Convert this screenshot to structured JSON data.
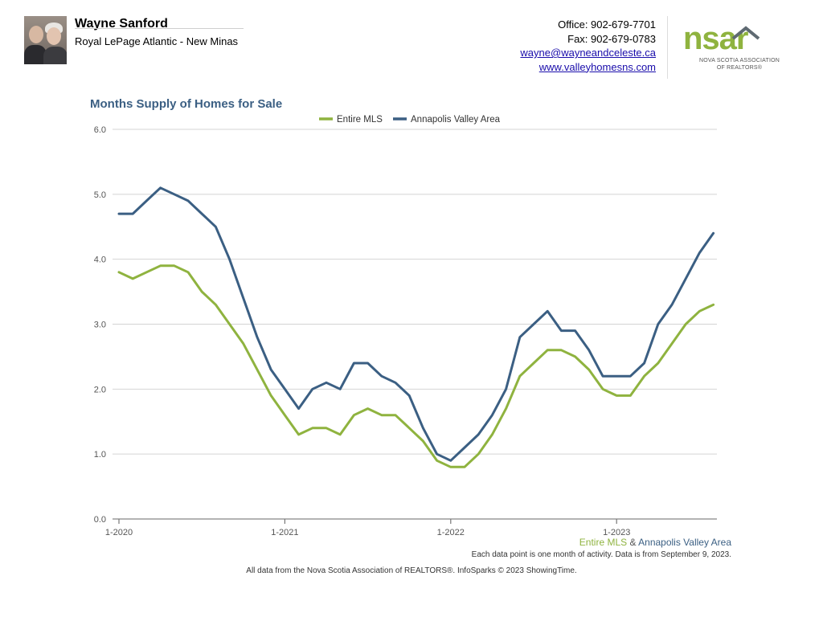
{
  "agent": {
    "name": "Wayne Sanford",
    "company": "Royal LePage Atlantic - New Minas"
  },
  "contact": {
    "office": "Office: 902-679-7701",
    "fax": "Fax: 902-679-0783",
    "email": "wayne@wayneandceleste.ca",
    "website": "www.valleyhomesns.com"
  },
  "logo": {
    "word": "nsar",
    "line1": "NOVA SCOTIA ASSOCIATION",
    "line2": "OF REALTORS®"
  },
  "colors": {
    "entire_mls": "#8fb33f",
    "annapolis": "#3b5f83",
    "grid": "#d4d4d4"
  },
  "footer": {
    "series_a": "Entire MLS",
    "amp": " & ",
    "series_b": "Annapolis Valley Area",
    "note": "Each data point is one month of activity. Data is from September 9, 2023.",
    "source": "All data from the Nova Scotia Association of REALTORS®. InfoSparks © 2023 ShowingTime."
  },
  "chart_data": {
    "type": "line",
    "title": "Months Supply of Homes for Sale",
    "xlabel": "",
    "ylabel": "",
    "ylim": [
      0,
      6
    ],
    "y_ticks": [
      "0.0",
      "1.0",
      "2.0",
      "3.0",
      "4.0",
      "5.0",
      "6.0"
    ],
    "x_tick_labels": [
      "1-2020",
      "1-2021",
      "1-2022",
      "1-2023"
    ],
    "x_tick_month_index": [
      0,
      12,
      24,
      36
    ],
    "x_range_months": [
      0,
      44
    ],
    "legend_position": "top-center",
    "grid": true,
    "series": [
      {
        "name": "Entire MLS",
        "color": "#8fb33f",
        "values": [
          3.8,
          3.7,
          3.8,
          3.9,
          3.9,
          3.8,
          3.5,
          3.3,
          3.0,
          2.7,
          2.3,
          1.9,
          1.6,
          1.3,
          1.4,
          1.4,
          1.3,
          1.6,
          1.7,
          1.6,
          1.6,
          1.4,
          1.2,
          0.9,
          0.8,
          0.8,
          1.0,
          1.3,
          1.7,
          2.2,
          2.4,
          2.6,
          2.6,
          2.5,
          2.3,
          2.0,
          1.9,
          1.9,
          2.2,
          2.4,
          2.7,
          3.0,
          3.2,
          3.3
        ]
      },
      {
        "name": "Annapolis Valley Area",
        "color": "#3b5f83",
        "values": [
          4.7,
          4.7,
          4.9,
          5.1,
          5.0,
          4.9,
          4.7,
          4.5,
          4.0,
          3.4,
          2.8,
          2.3,
          2.0,
          1.7,
          2.0,
          2.1,
          2.0,
          2.4,
          2.4,
          2.2,
          2.1,
          1.9,
          1.4,
          1.0,
          0.9,
          1.1,
          1.3,
          1.6,
          2.0,
          2.8,
          3.0,
          3.2,
          2.9,
          2.9,
          2.6,
          2.2,
          2.2,
          2.2,
          2.4,
          3.0,
          3.3,
          3.7,
          4.1,
          4.4
        ]
      }
    ]
  }
}
